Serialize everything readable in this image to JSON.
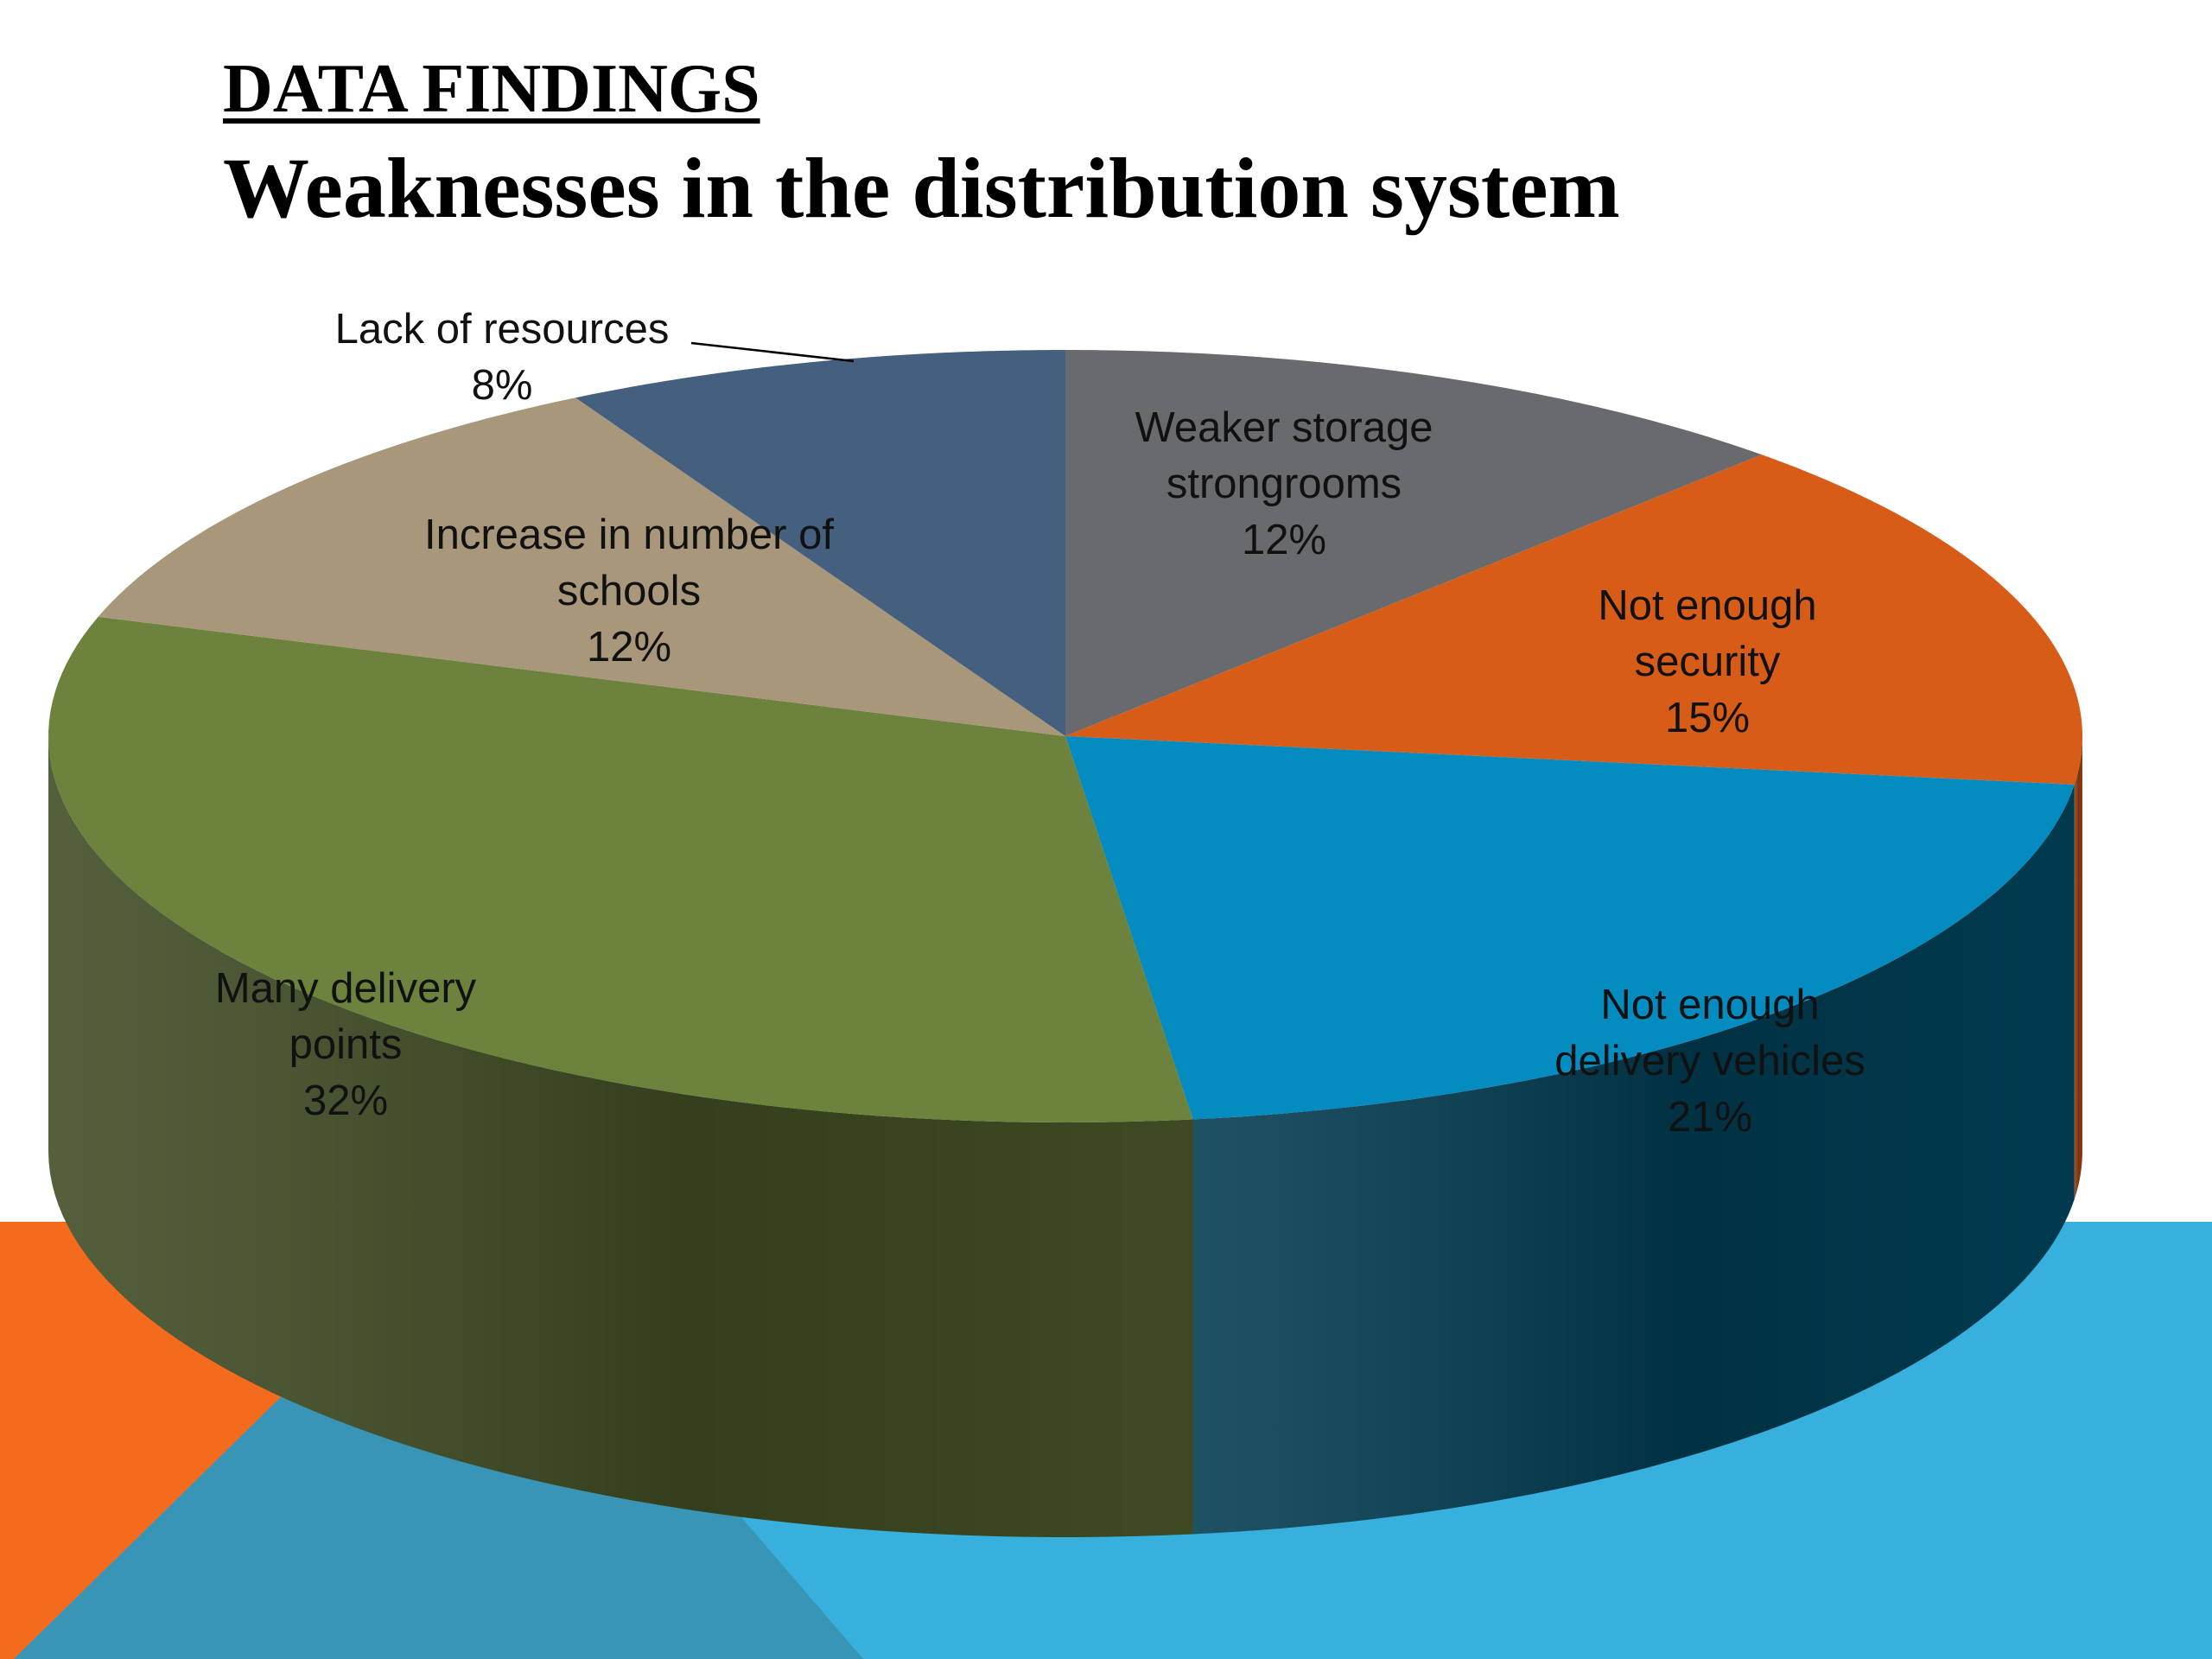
{
  "slide": {
    "kicker": "DATA FINDINGS",
    "title": "Weaknesses in the distribution system"
  },
  "chart_data": {
    "type": "pie",
    "style": "3d",
    "title": "Weaknesses in the distribution system",
    "start": "12 o'clock, clockwise",
    "categories": [
      "Weaker storage strongrooms",
      "Not enough security",
      "Not enough delivery vehicles",
      "Many delivery points",
      "Increase in number of schools",
      "Lack of resources"
    ],
    "values": [
      12,
      15,
      21,
      32,
      12,
      8
    ],
    "labels": [
      "12%",
      "15%",
      "21%",
      "32%",
      "12%",
      "8%"
    ],
    "colors": [
      "#696A6E",
      "#D75C17",
      "#048BBF",
      "#6C823D",
      "#A8977A",
      "#44607E"
    ],
    "side_colors": [
      "#46474A",
      "#8F3D0F",
      "#013A4F",
      "#3D4A22",
      "#6E6350",
      "#2B3D52"
    ]
  },
  "background_colors": {
    "orange": "#F56B1E",
    "light_blue": "#38B0DE",
    "teal": "#3895B5"
  }
}
